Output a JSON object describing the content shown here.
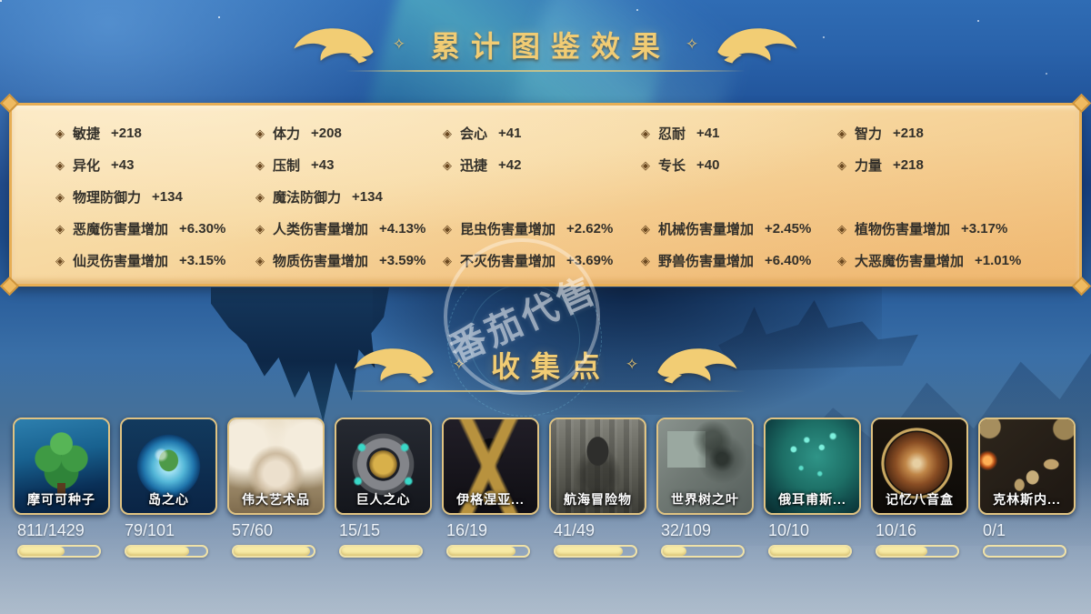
{
  "header": {
    "title": "累计图鉴效果",
    "ornament": "✧"
  },
  "stats_panel": {
    "rows": [
      [
        {
          "label": "敏捷",
          "value": "+218"
        },
        {
          "label": "体力",
          "value": "+208"
        },
        {
          "label": "会心",
          "value": "+41"
        },
        {
          "label": "忍耐",
          "value": "+41"
        },
        {
          "label": "智力",
          "value": "+218"
        }
      ],
      [
        {
          "label": "异化",
          "value": "+43"
        },
        {
          "label": "压制",
          "value": "+43"
        },
        {
          "label": "迅捷",
          "value": "+42"
        },
        {
          "label": "专长",
          "value": "+40"
        },
        {
          "label": "力量",
          "value": "+218"
        }
      ],
      [
        {
          "label": "物理防御力",
          "value": "+134"
        },
        {
          "label": "魔法防御力",
          "value": "+134"
        }
      ],
      [
        {
          "label": "恶魔伤害量增加",
          "value": "+6.30%"
        },
        {
          "label": "人类伤害量增加",
          "value": "+4.13%"
        },
        {
          "label": "昆虫伤害量增加",
          "value": "+2.62%"
        },
        {
          "label": "机械伤害量增加",
          "value": "+2.45%"
        },
        {
          "label": "植物伤害量增加",
          "value": "+3.17%"
        }
      ],
      [
        {
          "label": "仙灵伤害量增加",
          "value": "+3.15%"
        },
        {
          "label": "物质伤害量增加",
          "value": "+3.59%"
        },
        {
          "label": "不灭伤害量增加",
          "value": "+3.69%"
        },
        {
          "label": "野兽伤害量增加",
          "value": "+6.40%"
        },
        {
          "label": "大恶魔伤害量增加",
          "value": "+1.01%"
        }
      ]
    ]
  },
  "collection": {
    "title": "收集点",
    "ornament": "✧",
    "cards": [
      {
        "name": "摩可可种子",
        "progress": "811/1429",
        "art": "mokoko"
      },
      {
        "name": "岛之心",
        "progress": "79/101",
        "art": "island"
      },
      {
        "name": "伟大艺术品",
        "progress": "57/60",
        "art": "artwork"
      },
      {
        "name": "巨人之心",
        "progress": "15/15",
        "art": "giant"
      },
      {
        "name": "伊格涅亚...",
        "progress": "16/19",
        "art": "ignea"
      },
      {
        "name": "航海冒险物",
        "progress": "41/49",
        "art": "voyage"
      },
      {
        "name": "世界树之叶",
        "progress": "32/109",
        "art": "worldtree"
      },
      {
        "name": "俄耳甫斯...",
        "progress": "10/10",
        "art": "orpheus"
      },
      {
        "name": "记忆八音盒",
        "progress": "10/16",
        "art": "musicbox"
      },
      {
        "name": "克林斯内...",
        "progress": "0/1",
        "art": "krins"
      }
    ]
  },
  "watermark": {
    "text": "番茄代售"
  },
  "colors": {
    "accent_gold": "#f2cd74",
    "panel_bg": "#f6d9a2",
    "panel_border": "#e7ae55",
    "bar_fill": "#f8eba6",
    "stat_text": "#33302a",
    "counter_text": "#eef4fa"
  }
}
